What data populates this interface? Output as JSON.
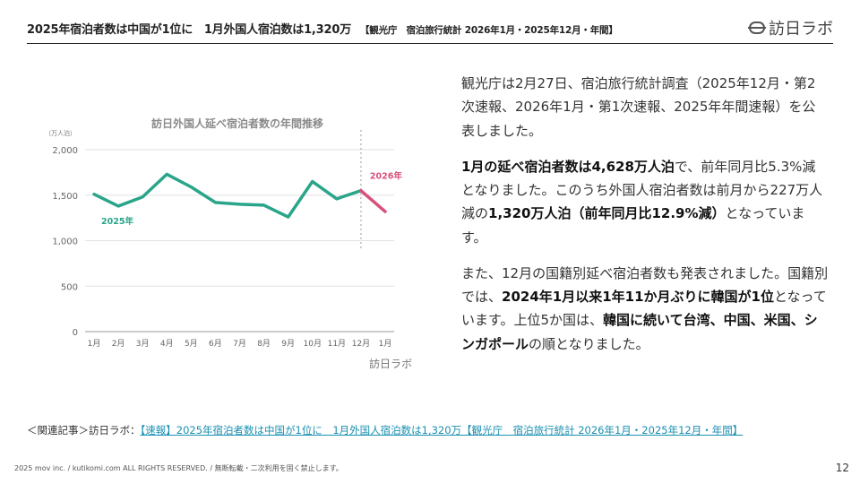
{
  "header": {
    "title": "2025年宿泊者数は中国が1位に　1月外国人宿泊数は1,320万",
    "subtitle": "【観光庁　宿泊旅行統計 2026年1月・2025年12月・年間】",
    "brand": "訪日ラボ"
  },
  "chart_data": {
    "type": "line",
    "title": "訪日外国人延べ宿泊者数の年間推移",
    "ylabel": "（万人泊）",
    "ylim": [
      0,
      2000
    ],
    "yticks": [
      "0",
      "500",
      "1,000",
      "1,500",
      "2,000"
    ],
    "categories": [
      "1月",
      "2月",
      "3月",
      "4月",
      "5月",
      "6月",
      "7月",
      "8月",
      "9月",
      "10月",
      "11月",
      "12月",
      "1月"
    ],
    "series": [
      {
        "name": "2025年",
        "color": "#2aa58a",
        "values": [
          1510,
          1380,
          1480,
          1730,
          1590,
          1420,
          1400,
          1390,
          1260,
          1650,
          1460,
          1550,
          null
        ]
      },
      {
        "name": "2026年",
        "color": "#d9507a",
        "values": [
          null,
          null,
          null,
          null,
          null,
          null,
          null,
          null,
          null,
          null,
          null,
          1550,
          1320
        ]
      }
    ],
    "watermark": "訪日ラボ"
  },
  "body": {
    "p1": "観光庁は2月27日、宿泊旅行統計調査（2025年12月・第2次速報、2026年1月・第1次速報、2025年年間速報）を公表しました。",
    "p2_b1": "1月の延べ宿泊者数は4,628万人泊",
    "p2_t1": "で、前年同月比5.3%減となりました。このうち外国人宿泊者数は前月から227万人減の",
    "p2_b2": "1,320万人泊（前年同月比12.9%減）",
    "p2_t2": "となっています。",
    "p3_t1": "また、12月の国籍別延べ宿泊者数も発表されました。国籍別では、",
    "p3_b1": "2024年1月以来1年11か月ぶりに韓国が1位",
    "p3_t2": "となっています。上位5か国は、",
    "p3_b2": "韓国に続いて台湾、中国、米国、シンガポール",
    "p3_t3": "の順となりました。"
  },
  "related": {
    "prefix": "＜関連記事＞訪日ラボ：",
    "link": "【速報】2025年宿泊者数は中国が1位に　1月外国人宿泊数は1,320万【観光庁　宿泊旅行統計 2026年1月・2025年12月・年間】"
  },
  "footer": {
    "copyright": "2025 mov inc. / kutikomi.com ALL RIGHTS RESERVED. / 無断転載・二次利用を固く禁止します。",
    "page": "12"
  }
}
